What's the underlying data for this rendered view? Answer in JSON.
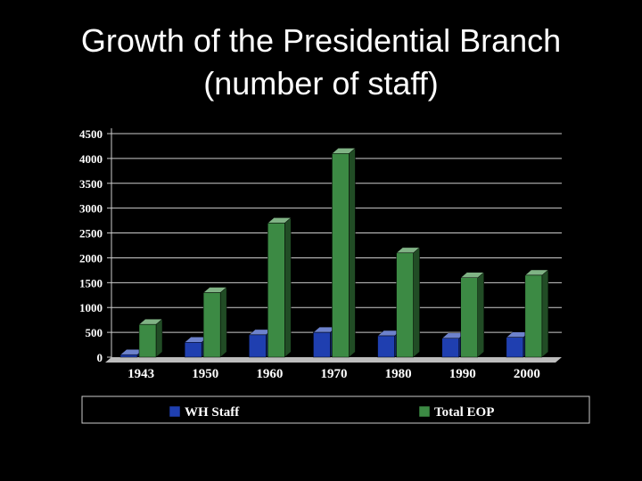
{
  "slide": {
    "title_line1": "Growth of the Presidential Branch",
    "title_line2": "(number of staff)"
  },
  "colors": {
    "background": "#000000",
    "wh_staff": "#1f3fb0",
    "total_eop": "#3c8a44",
    "grid": "#cccccc",
    "floor": "#bdbdbd"
  },
  "chart_data": {
    "type": "bar",
    "categories": [
      "1943",
      "1950",
      "1960",
      "1970",
      "1980",
      "1990",
      "2000"
    ],
    "series": [
      {
        "name": "WH Staff",
        "values": [
          50,
          300,
          450,
          500,
          430,
          380,
          400
        ]
      },
      {
        "name": "Total EOP",
        "values": [
          660,
          1300,
          2700,
          4100,
          2100,
          1600,
          1650
        ]
      }
    ],
    "title": "",
    "xlabel": "",
    "ylabel": "",
    "ylim": [
      0,
      4500
    ],
    "yticks": [
      "0",
      "500",
      "1000",
      "1500",
      "2000",
      "2500",
      "3000",
      "3500",
      "4000",
      "4500"
    ],
    "grid": true,
    "legend_position": "bottom",
    "legend": [
      "WH Staff",
      "Total EOP"
    ]
  }
}
